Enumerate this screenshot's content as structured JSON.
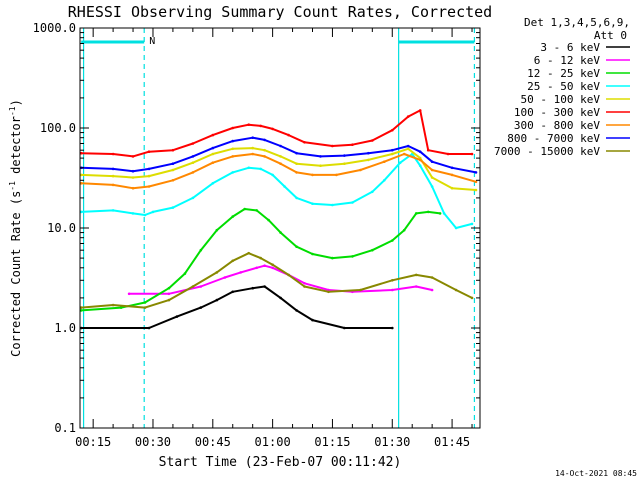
{
  "chart_data": {
    "type": "line",
    "title": "RHESSI Observing Summary Count Rates, Corrected",
    "xlabel": "Start Time (23-Feb-07 00:11:42)",
    "ylabel_main": "Corrected Count Rate (s",
    "ylabel_sup1": "-1",
    "ylabel_mid": " detector",
    "ylabel_sup2": "-1",
    "ylabel_end": ")",
    "y_scale": "log",
    "ylim": [
      0.1,
      1000
    ],
    "y_ticks": [
      {
        "value": 0.1,
        "label": "0.1"
      },
      {
        "value": 1,
        "label": "1.0"
      },
      {
        "value": 10,
        "label": "10.0"
      },
      {
        "value": 100,
        "label": "100.0"
      },
      {
        "value": 1000,
        "label": "1000.0"
      }
    ],
    "xlim_minutes": [
      11.7,
      112
    ],
    "x_ticks": [
      {
        "value": 15,
        "label": "00:15"
      },
      {
        "value": 30,
        "label": "00:30"
      },
      {
        "value": 45,
        "label": "00:45"
      },
      {
        "value": 60,
        "label": "01:00"
      },
      {
        "value": 75,
        "label": "01:15"
      },
      {
        "value": 90,
        "label": "01:30"
      },
      {
        "value": 105,
        "label": "01:45"
      }
    ],
    "legend_header": [
      "Det 1,3,4,5,6,9,",
      "Att 0"
    ],
    "legend_placement": "top-right outside plot",
    "series": [
      {
        "name": "3 - 6 keV",
        "color": "#000000",
        "points": [
          [
            12,
            1.0
          ],
          [
            29,
            1.0
          ],
          [
            36,
            1.3
          ],
          [
            42,
            1.6
          ],
          [
            46,
            1.9
          ],
          [
            50,
            2.3
          ],
          [
            55,
            2.5
          ],
          [
            58,
            2.6
          ],
          [
            62,
            2.0
          ],
          [
            66,
            1.5
          ],
          [
            70,
            1.2
          ],
          [
            78,
            1.0
          ],
          [
            90,
            1.0
          ]
        ]
      },
      {
        "name": "6 - 12 keV",
        "color": "#ff00ff",
        "points": [
          [
            24,
            2.2
          ],
          [
            34,
            2.2
          ],
          [
            42,
            2.6
          ],
          [
            48,
            3.2
          ],
          [
            52,
            3.6
          ],
          [
            56,
            4.0
          ],
          [
            58,
            4.2
          ],
          [
            60,
            4.0
          ],
          [
            64,
            3.4
          ],
          [
            68,
            2.8
          ],
          [
            74,
            2.4
          ],
          [
            80,
            2.3
          ],
          [
            90,
            2.4
          ],
          [
            96,
            2.6
          ],
          [
            100,
            2.4
          ]
        ]
      },
      {
        "name": "12 - 25 keV",
        "color": "#00dd00",
        "points": [
          [
            12,
            1.5
          ],
          [
            22,
            1.6
          ],
          [
            28,
            1.8
          ],
          [
            34,
            2.5
          ],
          [
            38,
            3.5
          ],
          [
            42,
            6.0
          ],
          [
            46,
            9.5
          ],
          [
            50,
            13.0
          ],
          [
            53,
            15.5
          ],
          [
            56,
            15.0
          ],
          [
            59,
            12.0
          ],
          [
            62,
            9.0
          ],
          [
            66,
            6.5
          ],
          [
            70,
            5.5
          ],
          [
            75,
            5.0
          ],
          [
            80,
            5.2
          ],
          [
            85,
            6.0
          ],
          [
            90,
            7.5
          ],
          [
            93,
            9.5
          ],
          [
            96,
            14.0
          ],
          [
            99,
            14.5
          ],
          [
            102,
            14.0
          ]
        ]
      },
      {
        "name": "25 - 50 keV",
        "color": "#00ffff",
        "points": [
          [
            12,
            14.5
          ],
          [
            20,
            15.0
          ],
          [
            25,
            14.0
          ],
          [
            28,
            13.5
          ],
          [
            30,
            14.5
          ],
          [
            35,
            16.0
          ],
          [
            40,
            20.0
          ],
          [
            45,
            28.0
          ],
          [
            50,
            36.0
          ],
          [
            54,
            40.0
          ],
          [
            57,
            39.0
          ],
          [
            60,
            34.0
          ],
          [
            63,
            26.0
          ],
          [
            66,
            20.0
          ],
          [
            70,
            17.5
          ],
          [
            75,
            17.0
          ],
          [
            80,
            18.0
          ],
          [
            85,
            23.0
          ],
          [
            88,
            30.0
          ],
          [
            92,
            45.0
          ],
          [
            95,
            55.0
          ],
          [
            97,
            42.0
          ],
          [
            100,
            26.0
          ],
          [
            103,
            14.0
          ],
          [
            106,
            10.0
          ],
          [
            110,
            11.0
          ]
        ]
      },
      {
        "name": "50 - 100 keV",
        "color": "#dddd00",
        "points": [
          [
            12,
            34.0
          ],
          [
            20,
            33.0
          ],
          [
            25,
            32.0
          ],
          [
            29,
            33.0
          ],
          [
            35,
            38.0
          ],
          [
            40,
            45.0
          ],
          [
            45,
            55.0
          ],
          [
            50,
            62.0
          ],
          [
            55,
            63.0
          ],
          [
            58,
            60.0
          ],
          [
            62,
            52.0
          ],
          [
            66,
            44.0
          ],
          [
            72,
            42.0
          ],
          [
            78,
            44.0
          ],
          [
            84,
            48.0
          ],
          [
            90,
            55.0
          ],
          [
            94,
            62.0
          ],
          [
            97,
            50.0
          ],
          [
            100,
            32.0
          ],
          [
            105,
            25.0
          ],
          [
            111,
            24.0
          ]
        ]
      },
      {
        "name": "100 - 300 keV",
        "color": "#ff0000",
        "points": [
          [
            12,
            56.0
          ],
          [
            20,
            55.0
          ],
          [
            25,
            52.0
          ],
          [
            29,
            58.0
          ],
          [
            35,
            60.0
          ],
          [
            40,
            70.0
          ],
          [
            45,
            85.0
          ],
          [
            50,
            100.0
          ],
          [
            54,
            108.0
          ],
          [
            57,
            105.0
          ],
          [
            60,
            98.0
          ],
          [
            64,
            85.0
          ],
          [
            68,
            72.0
          ],
          [
            75,
            66.0
          ],
          [
            80,
            68.0
          ],
          [
            85,
            75.0
          ],
          [
            90,
            95.0
          ],
          [
            94,
            130.0
          ],
          [
            97,
            150.0
          ],
          [
            99,
            60.0
          ],
          [
            104,
            55.0
          ],
          [
            110,
            55.0
          ]
        ]
      },
      {
        "name": "300 - 800 keV",
        "color": "#ff8800",
        "points": [
          [
            12,
            28.0
          ],
          [
            20,
            27.0
          ],
          [
            25,
            25.0
          ],
          [
            29,
            26.0
          ],
          [
            35,
            30.0
          ],
          [
            40,
            36.0
          ],
          [
            45,
            45.0
          ],
          [
            50,
            52.0
          ],
          [
            55,
            55.0
          ],
          [
            58,
            52.0
          ],
          [
            62,
            44.0
          ],
          [
            66,
            36.0
          ],
          [
            70,
            34.0
          ],
          [
            76,
            34.0
          ],
          [
            82,
            38.0
          ],
          [
            88,
            46.0
          ],
          [
            93,
            55.0
          ],
          [
            97,
            48.0
          ],
          [
            100,
            38.0
          ],
          [
            105,
            34.0
          ],
          [
            111,
            29.0
          ]
        ]
      },
      {
        "name": "800 - 7000 keV",
        "color": "#0000ff",
        "points": [
          [
            12,
            40.0
          ],
          [
            20,
            39.0
          ],
          [
            25,
            37.0
          ],
          [
            29,
            39.0
          ],
          [
            35,
            44.0
          ],
          [
            40,
            52.0
          ],
          [
            45,
            63.0
          ],
          [
            50,
            74.0
          ],
          [
            55,
            80.0
          ],
          [
            58,
            76.0
          ],
          [
            62,
            66.0
          ],
          [
            66,
            56.0
          ],
          [
            72,
            52.0
          ],
          [
            78,
            53.0
          ],
          [
            84,
            56.0
          ],
          [
            90,
            60.0
          ],
          [
            94,
            66.0
          ],
          [
            97,
            58.0
          ],
          [
            100,
            46.0
          ],
          [
            105,
            40.0
          ],
          [
            111,
            36.0
          ]
        ]
      },
      {
        "name": "7000 - 15000 keV",
        "color": "#888800",
        "points": [
          [
            12,
            1.6
          ],
          [
            20,
            1.7
          ],
          [
            28,
            1.6
          ],
          [
            34,
            1.9
          ],
          [
            40,
            2.6
          ],
          [
            46,
            3.6
          ],
          [
            50,
            4.7
          ],
          [
            54,
            5.6
          ],
          [
            57,
            5.0
          ],
          [
            60,
            4.3
          ],
          [
            64,
            3.4
          ],
          [
            68,
            2.6
          ],
          [
            74,
            2.3
          ],
          [
            82,
            2.4
          ],
          [
            90,
            3.0
          ],
          [
            96,
            3.4
          ],
          [
            100,
            3.2
          ],
          [
            106,
            2.4
          ],
          [
            110,
            2.0
          ]
        ]
      }
    ],
    "vertical_lines": [
      {
        "x": 12.6,
        "style": "solid"
      },
      {
        "x": 27.8,
        "style": "dashed"
      },
      {
        "x": 91.6,
        "style": "solid"
      },
      {
        "x": 110.6,
        "style": "dashed"
      }
    ],
    "flag_bars": [
      {
        "x0": 12.0,
        "x1": 27.8,
        "label": "N"
      },
      {
        "x0": 91.6,
        "x1": 110.6,
        "label": ""
      }
    ],
    "footer_timestamp": "14-Oct-2021 08:45"
  }
}
